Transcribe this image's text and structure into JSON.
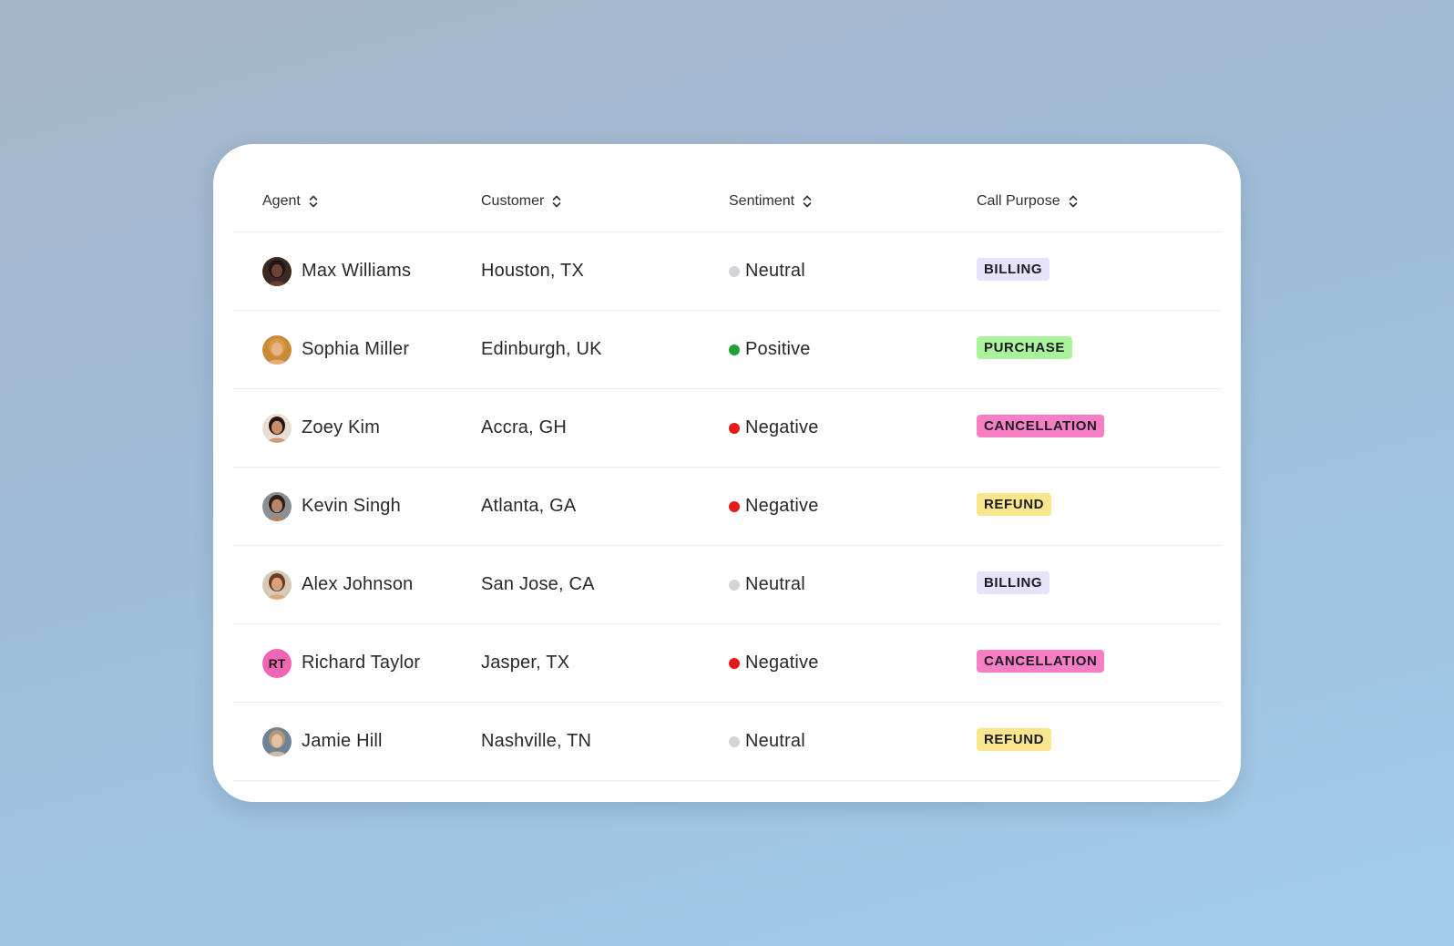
{
  "table": {
    "columns": [
      {
        "label": "Agent",
        "icon": "sort-icon"
      },
      {
        "label": "Customer",
        "icon": "sort-icon"
      },
      {
        "label": "Sentiment",
        "icon": "sort-icon"
      },
      {
        "label": "Call Purpose",
        "icon": "sort-icon"
      }
    ],
    "rows": [
      {
        "agent": "Max Williams",
        "avatar": {
          "type": "photo",
          "skin": "#6b4330",
          "hair": "#1e1410",
          "bg": "#3a2a22"
        },
        "customer": "Houston, TX",
        "sentiment": "Neutral",
        "purpose": "BILLING"
      },
      {
        "agent": "Sophia Miller",
        "avatar": {
          "type": "photo",
          "skin": "#e6b48d",
          "hair": "#d99b3c",
          "bg": "#c98a3a"
        },
        "customer": "Edinburgh, UK",
        "sentiment": "Positive",
        "purpose": "PURCHASE"
      },
      {
        "agent": "Zoey Kim",
        "avatar": {
          "type": "photo",
          "skin": "#c98d6a",
          "hair": "#231612",
          "bg": "#e9dfd6"
        },
        "customer": "Accra, GH",
        "sentiment": "Negative",
        "purpose": "CANCELLATION"
      },
      {
        "agent": "Kevin Singh",
        "avatar": {
          "type": "photo",
          "skin": "#b88566",
          "hair": "#2a1c15",
          "bg": "#8a8f93"
        },
        "customer": "Atlanta, GA",
        "sentiment": "Negative",
        "purpose": "REFUND"
      },
      {
        "agent": "Alex Johnson",
        "avatar": {
          "type": "photo",
          "skin": "#d9a27c",
          "hair": "#6b3a22",
          "bg": "#d7c9b7"
        },
        "customer": "San Jose, CA",
        "sentiment": "Neutral",
        "purpose": "BILLING"
      },
      {
        "agent": "Richard Taylor",
        "avatar": {
          "type": "initials",
          "text": "RT",
          "bg": "#f066b5"
        },
        "customer": "Jasper, TX",
        "sentiment": "Negative",
        "purpose": "CANCELLATION"
      },
      {
        "agent": "Jamie Hill",
        "avatar": {
          "type": "photo",
          "skin": "#e4c2a6",
          "hair": "#b89571",
          "bg": "#6d8496"
        },
        "customer": "Nashville, TN",
        "sentiment": "Neutral",
        "purpose": "REFUND"
      }
    ]
  },
  "sentiment_colors": {
    "Neutral": "#d3d5d9",
    "Positive": "#1f9e3b",
    "Negative": "#e61a1a"
  },
  "purpose_colors": {
    "BILLING": "#e6e3fa",
    "PURCHASE": "#a9f39c",
    "CANCELLATION": "#f57ec4",
    "REFUND": "#f8e58c"
  }
}
